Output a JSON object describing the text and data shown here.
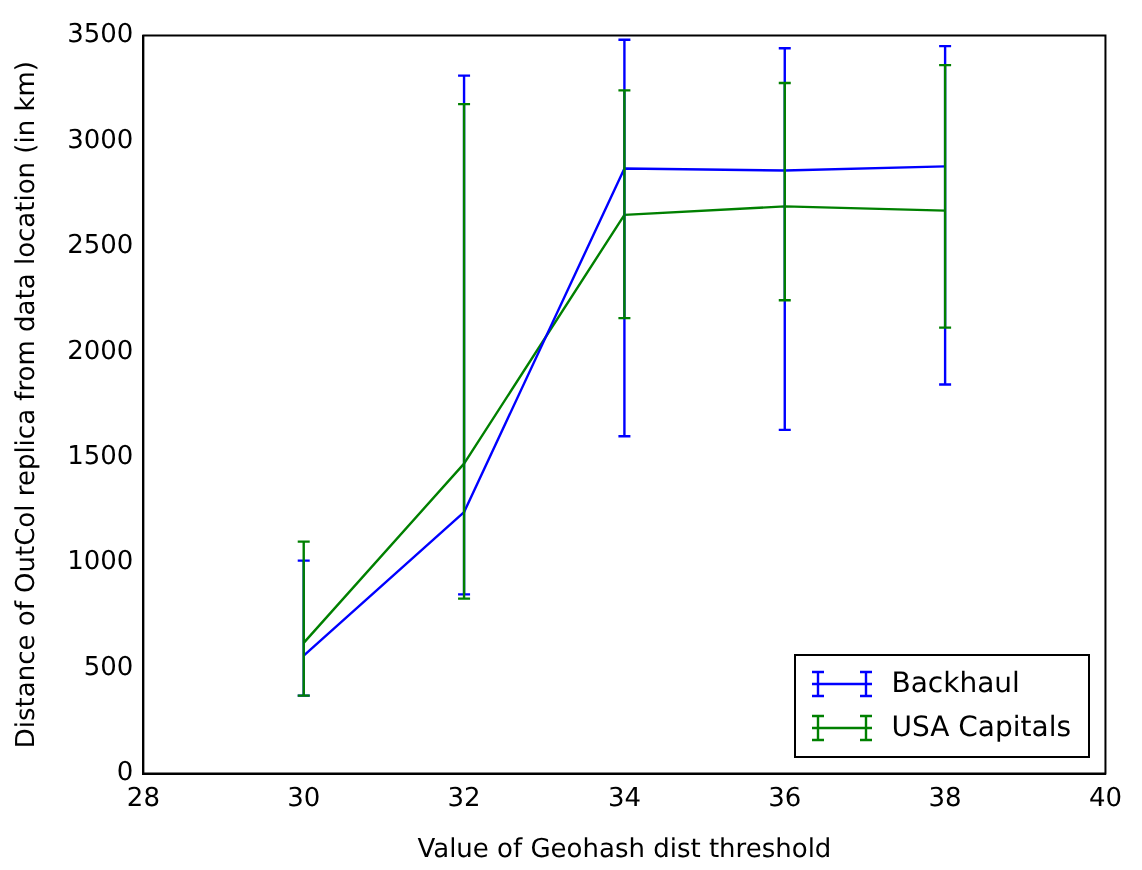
{
  "chart_data": {
    "type": "line",
    "xlabel": "Value of Geohash dist threshold",
    "ylabel": "Distance of OutCol replica from data location (in km)",
    "x": [
      30,
      32,
      34,
      36,
      38
    ],
    "series": [
      {
        "name": "Backhaul",
        "color": "#0000ff",
        "values": [
          560,
          1240,
          2870,
          2860,
          2880
        ],
        "errors": [
          [
            370,
            1010
          ],
          [
            850,
            3310
          ],
          [
            1600,
            3480
          ],
          [
            1630,
            3440
          ],
          [
            1845,
            3450
          ]
        ]
      },
      {
        "name": "USA Capitals",
        "color": "#008000",
        "values": [
          620,
          1470,
          2650,
          2690,
          2670
        ],
        "errors": [
          [
            370,
            1100
          ],
          [
            830,
            3175
          ],
          [
            2160,
            3240
          ],
          [
            2245,
            3275
          ],
          [
            2115,
            3360
          ]
        ]
      }
    ],
    "xlim": [
      28,
      40
    ],
    "xticks": [
      28,
      30,
      32,
      34,
      36,
      38,
      40
    ],
    "ylim": [
      0,
      3500
    ],
    "yticks": [
      0,
      500,
      1000,
      1500,
      2000,
      2500,
      3000,
      3500
    ],
    "grid": false,
    "legend": "bottom right",
    "marker": "none",
    "line_style": "solid"
  }
}
